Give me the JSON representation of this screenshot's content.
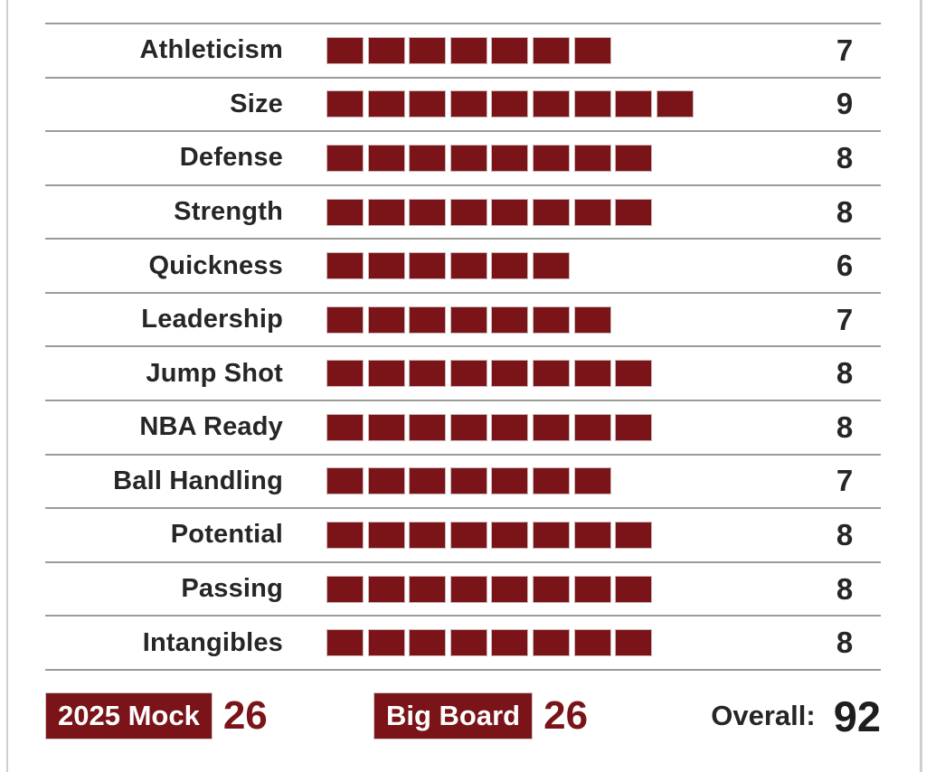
{
  "theme": {
    "accent_red": "#7a1418",
    "text_dark": "#262626",
    "divider": "#9b9b9b",
    "block_border": "#cbb6b6",
    "edge": "#cfcfcf",
    "badge_text": "#ffffff"
  },
  "ratings": {
    "max": 10,
    "rows": [
      {
        "label": "Athleticism",
        "value": 7
      },
      {
        "label": "Size",
        "value": 9
      },
      {
        "label": "Defense",
        "value": 8
      },
      {
        "label": "Strength",
        "value": 8
      },
      {
        "label": "Quickness",
        "value": 6
      },
      {
        "label": "Leadership",
        "value": 7
      },
      {
        "label": "Jump Shot",
        "value": 8
      },
      {
        "label": "NBA Ready",
        "value": 8
      },
      {
        "label": "Ball Handling",
        "value": 7
      },
      {
        "label": "Potential",
        "value": 8
      },
      {
        "label": "Passing",
        "value": 8
      },
      {
        "label": "Intangibles",
        "value": 8
      }
    ]
  },
  "footer": {
    "mock_label": "2025 Mock",
    "mock_value": "26",
    "big_board_label": "Big Board",
    "big_board_value": "26",
    "overall_label": "Overall:",
    "overall_value": "92"
  },
  "chart_data": {
    "type": "bar",
    "title": "Player attribute ratings scorecard",
    "categories": [
      "Athleticism",
      "Size",
      "Defense",
      "Strength",
      "Quickness",
      "Leadership",
      "Jump Shot",
      "NBA Ready",
      "Ball Handling",
      "Potential",
      "Passing",
      "Intangibles"
    ],
    "values": [
      7,
      9,
      8,
      8,
      6,
      7,
      8,
      8,
      7,
      8,
      8,
      8
    ],
    "xlabel": "",
    "ylabel": "",
    "value_range": [
      0,
      10
    ],
    "orientation": "horizontal",
    "bar_style": "discrete-blocks",
    "summary": {
      "2025_mock": 26,
      "big_board": 26,
      "overall": 92
    },
    "grid": "row-dividers",
    "legend": "none"
  }
}
